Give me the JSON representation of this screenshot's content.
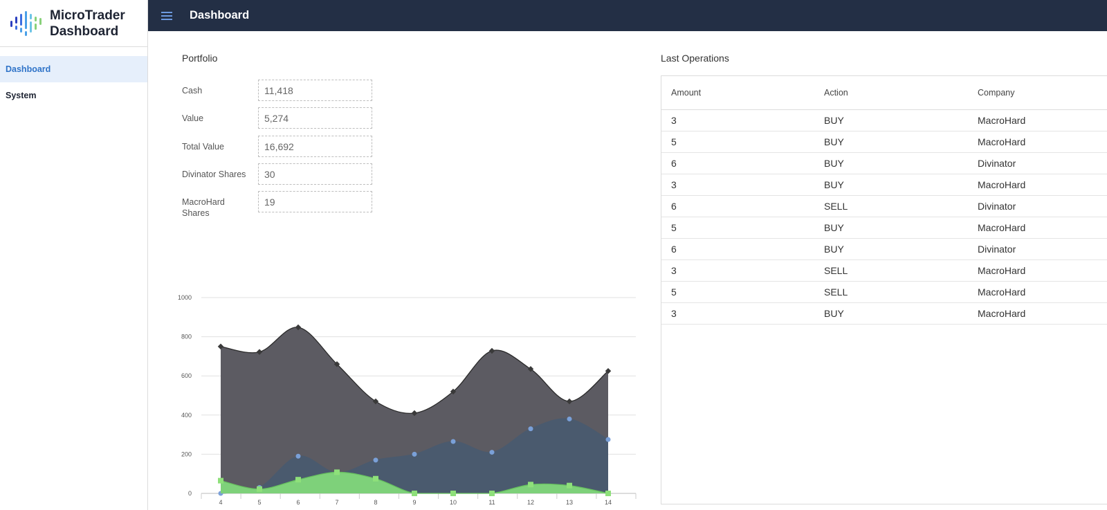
{
  "app": {
    "title": "MicroTrader Dashboard",
    "logo_colors": [
      "#2b3fbf",
      "#3c6fe0",
      "#4aa0e8",
      "#6cc4e6",
      "#89d17a"
    ]
  },
  "sidebar": {
    "items": [
      {
        "label": "Dashboard",
        "active": true
      },
      {
        "label": "System",
        "active": false
      }
    ]
  },
  "topbar": {
    "icon": "hamburger-menu-icon",
    "title": "Dashboard",
    "background": "#232f45"
  },
  "portfolio": {
    "title": "Portfolio",
    "fields": [
      {
        "label": "Cash",
        "value": "11,418"
      },
      {
        "label": "Value",
        "value": "5,274"
      },
      {
        "label": "Total Value",
        "value": "16,692"
      },
      {
        "label": "Divinator Shares",
        "value": "30"
      },
      {
        "label": "MacroHard Shares",
        "value": "19"
      }
    ]
  },
  "chart_data": {
    "type": "area",
    "x": [
      4,
      5,
      6,
      7,
      8,
      9,
      10,
      11,
      12,
      13,
      14
    ],
    "ylim": [
      0,
      1000
    ],
    "yticks": [
      0,
      200,
      400,
      600,
      800,
      1000
    ],
    "grid": true,
    "series": [
      {
        "color": "#5c5b62",
        "line_color": "#2b2b2b",
        "marker": "diamond",
        "values": [
          750,
          722,
          848,
          660,
          470,
          410,
          520,
          728,
          635,
          470,
          625
        ]
      },
      {
        "color": "#4a5a6e",
        "line_color": "#4a5a6e",
        "marker": "circle",
        "values": [
          0,
          30,
          190,
          105,
          170,
          200,
          265,
          210,
          330,
          380,
          275
        ]
      },
      {
        "color": "#7ed17a",
        "line_color": "#67c05f",
        "marker": "square",
        "values": [
          65,
          22,
          70,
          108,
          75,
          0,
          0,
          0,
          45,
          40,
          0
        ]
      }
    ]
  },
  "operations": {
    "title": "Last Operations",
    "columns": [
      "Amount",
      "Action",
      "Company"
    ],
    "rows": [
      [
        "3",
        "BUY",
        "MacroHard"
      ],
      [
        "5",
        "BUY",
        "MacroHard"
      ],
      [
        "6",
        "BUY",
        "Divinator"
      ],
      [
        "3",
        "BUY",
        "MacroHard"
      ],
      [
        "6",
        "SELL",
        "Divinator"
      ],
      [
        "5",
        "BUY",
        "MacroHard"
      ],
      [
        "6",
        "BUY",
        "Divinator"
      ],
      [
        "3",
        "SELL",
        "MacroHard"
      ],
      [
        "5",
        "SELL",
        "MacroHard"
      ],
      [
        "3",
        "BUY",
        "MacroHard"
      ]
    ]
  }
}
